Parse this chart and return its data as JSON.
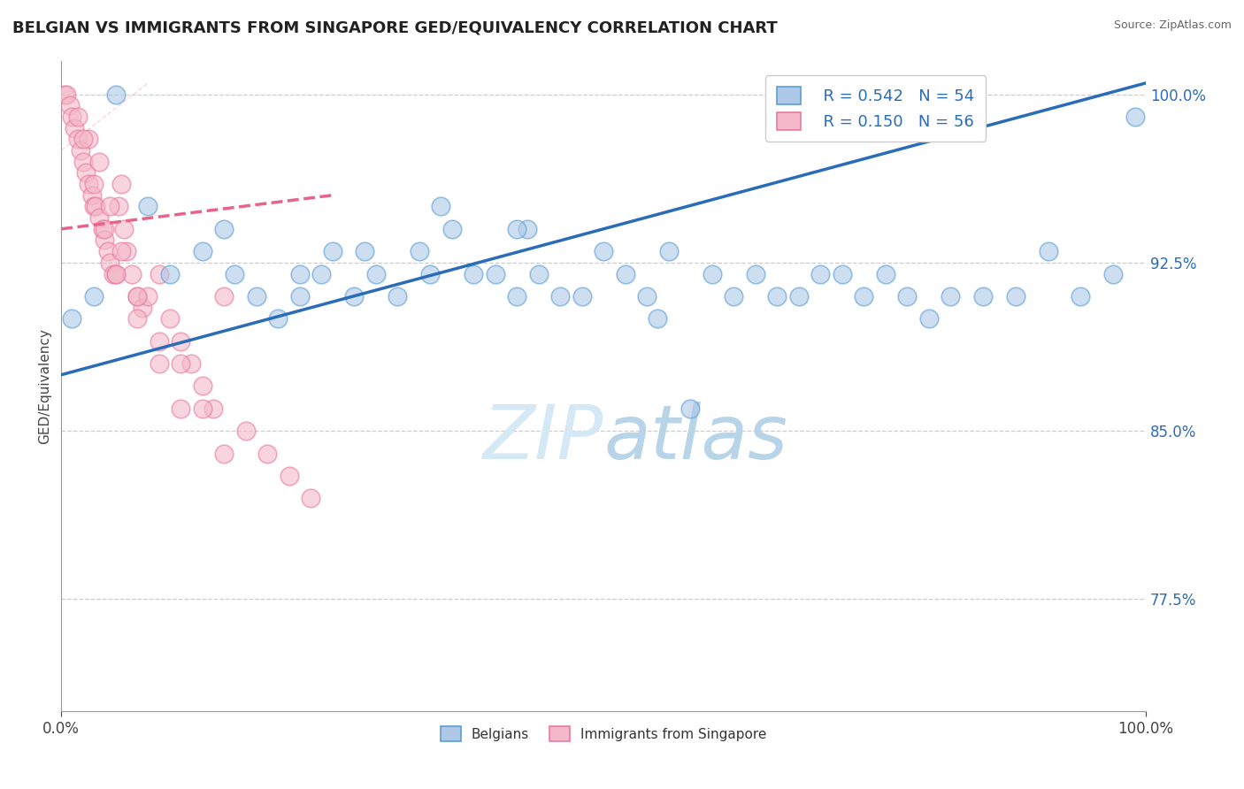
{
  "title": "BELGIAN VS IMMIGRANTS FROM SINGAPORE GED/EQUIVALENCY CORRELATION CHART",
  "source": "Source: ZipAtlas.com",
  "ylabel": "GED/Equivalency",
  "xlim": [
    0.0,
    100.0
  ],
  "ylim": [
    72.5,
    101.5
  ],
  "yticks": [
    77.5,
    85.0,
    92.5,
    100.0
  ],
  "ytick_labels": [
    "77.5%",
    "85.0%",
    "92.5%",
    "100.0%"
  ],
  "legend_r1": "R = 0.542",
  "legend_n1": "N = 54",
  "legend_r2": "R = 0.150",
  "legend_n2": "N = 56",
  "legend_label1": "Belgians",
  "legend_label2": "Immigrants from Singapore",
  "blue_color": "#aec8e8",
  "pink_color": "#f4b8c8",
  "blue_edge_color": "#5a9fd4",
  "pink_edge_color": "#e87aa0",
  "blue_line_color": "#2b6cb8",
  "pink_line_color": "#e8638a",
  "watermark_color": "#d5e8f5",
  "background_color": "#ffffff",
  "blue_scatter_x": [
    1,
    3,
    8,
    10,
    13,
    16,
    18,
    20,
    22,
    24,
    25,
    27,
    29,
    31,
    33,
    34,
    36,
    38,
    40,
    42,
    43,
    44,
    46,
    48,
    50,
    52,
    54,
    56,
    58,
    60,
    62,
    64,
    66,
    68,
    70,
    72,
    74,
    76,
    78,
    80,
    82,
    85,
    88,
    91,
    94,
    97,
    99,
    5,
    15,
    22,
    28,
    35,
    42,
    55
  ],
  "blue_scatter_y": [
    90,
    91,
    95,
    92,
    93,
    92,
    91,
    90,
    91,
    92,
    93,
    91,
    92,
    91,
    93,
    92,
    94,
    92,
    92,
    91,
    94,
    92,
    91,
    91,
    93,
    92,
    91,
    93,
    86,
    92,
    91,
    92,
    91,
    91,
    92,
    92,
    91,
    92,
    91,
    90,
    91,
    91,
    91,
    93,
    91,
    92,
    99,
    100,
    94,
    92,
    93,
    95,
    94,
    90
  ],
  "pink_scatter_x": [
    0.3,
    0.5,
    0.8,
    1.0,
    1.2,
    1.5,
    1.8,
    2.0,
    2.3,
    2.5,
    2.8,
    3.0,
    3.2,
    3.5,
    3.8,
    4.0,
    4.3,
    4.5,
    4.8,
    5.0,
    5.3,
    5.5,
    5.8,
    6.0,
    6.5,
    7.0,
    7.5,
    8.0,
    9.0,
    10.0,
    11.0,
    12.0,
    13.0,
    14.0,
    15.0,
    1.5,
    2.5,
    3.5,
    4.5,
    5.5,
    7.0,
    9.0,
    11.0,
    13.0,
    15.0,
    17.0,
    19.0,
    21.0,
    23.0,
    2.0,
    3.0,
    4.0,
    5.0,
    7.0,
    9.0,
    11.0
  ],
  "pink_scatter_y": [
    100,
    100,
    99.5,
    99,
    98.5,
    98,
    97.5,
    97,
    96.5,
    96,
    95.5,
    95,
    95,
    94.5,
    94,
    93.5,
    93,
    92.5,
    92,
    92,
    95,
    96,
    94,
    93,
    92,
    91,
    90.5,
    91,
    92,
    90,
    89,
    88,
    87,
    86,
    91,
    99,
    98,
    97,
    95,
    93,
    91,
    89,
    88,
    86,
    84,
    85,
    84,
    83,
    82,
    98,
    96,
    94,
    92,
    90,
    88,
    86
  ],
  "blue_line_x0": 0,
  "blue_line_y0": 87.5,
  "blue_line_x1": 100,
  "blue_line_y1": 100.5,
  "pink_line_x0": 0,
  "pink_line_y0": 94.0,
  "pink_line_x1": 25,
  "pink_line_y1": 95.5
}
